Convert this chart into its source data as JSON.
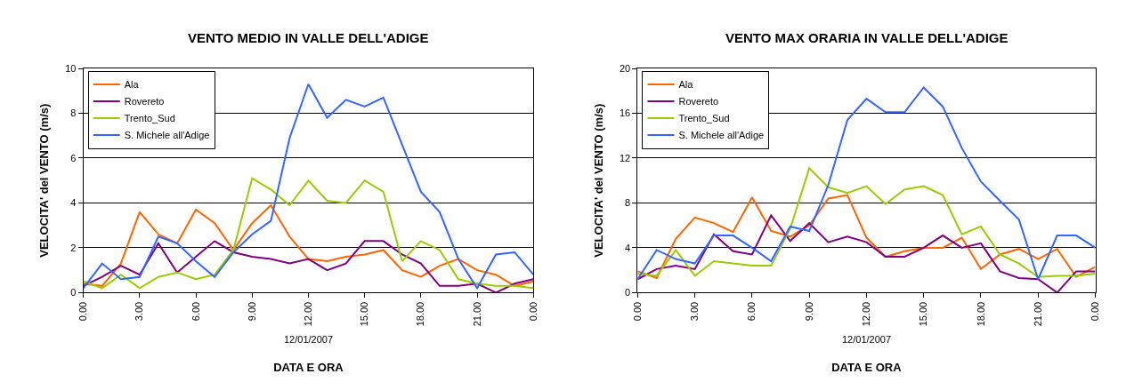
{
  "chart_data": [
    {
      "type": "line",
      "title": "VENTO MEDIO IN VALLE DELL'ADIGE",
      "xlabel": "DATA E ORA",
      "ylabel": "VELOCITA' del VENTO (m/s)",
      "annotations": [
        "12/01/2007"
      ],
      "categories": [
        "0.00",
        null,
        null,
        "3.00",
        null,
        null,
        "6.00",
        null,
        null,
        "9.00",
        null,
        null,
        "12.00",
        null,
        null,
        "15.00",
        null,
        null,
        "18.00",
        null,
        null,
        "21.00",
        null,
        null,
        "0.00"
      ],
      "ylim": [
        0,
        10
      ],
      "yticks": [
        0,
        2,
        4,
        6,
        8,
        10
      ],
      "grid": "y",
      "legend": "top left",
      "marker": "none",
      "line_style": "solid",
      "series": [
        {
          "name": "Ala",
          "color": "#ff6600",
          "values": [
            0.4,
            0.3,
            1.3,
            3.6,
            2.6,
            2.2,
            3.7,
            3.1,
            1.9,
            3.1,
            3.9,
            2.5,
            1.5,
            1.4,
            1.6,
            1.7,
            1.9,
            1.0,
            0.7,
            1.2,
            1.5,
            1.0,
            0.8,
            0.3,
            0.5
          ]
        },
        {
          "name": "Rovereto",
          "color": "#800080",
          "values": [
            0.3,
            0.7,
            1.2,
            0.8,
            2.2,
            0.9,
            1.6,
            2.3,
            1.8,
            1.6,
            1.5,
            1.3,
            1.5,
            1.0,
            1.3,
            2.3,
            2.3,
            1.7,
            1.3,
            0.3,
            0.3,
            0.4,
            0.0,
            0.4,
            0.6
          ]
        },
        {
          "name": "Trento_Sud",
          "color": "#99cc00",
          "values": [
            0.5,
            0.2,
            0.8,
            0.2,
            0.7,
            0.9,
            0.6,
            0.8,
            1.9,
            5.1,
            4.6,
            3.9,
            5.0,
            4.1,
            4.0,
            5.0,
            4.5,
            1.4,
            2.3,
            1.9,
            0.6,
            0.4,
            0.3,
            0.3,
            0.2
          ]
        },
        {
          "name": "S. Michele all'Adige",
          "color": "#3366ff",
          "values": [
            0.2,
            1.3,
            0.6,
            0.7,
            2.5,
            2.2,
            1.4,
            0.7,
            1.8,
            2.6,
            3.2,
            6.9,
            9.3,
            7.8,
            8.6,
            8.3,
            8.7,
            6.6,
            4.5,
            3.6,
            1.5,
            0.2,
            1.7,
            1.8,
            0.8
          ]
        }
      ]
    },
    {
      "type": "line",
      "title": "VENTO MAX ORARIA IN VALLE DELL'ADIGE",
      "xlabel": "DATA E ORA",
      "ylabel": "VELOCITA' del VENTO (m/s)",
      "annotations": [
        "12/01/2007"
      ],
      "categories": [
        "0.00",
        null,
        null,
        "3.00",
        null,
        null,
        "6.00",
        null,
        null,
        "9.00",
        null,
        null,
        "12.00",
        null,
        null,
        "15.00",
        null,
        null,
        "18.00",
        null,
        null,
        "21.00",
        null,
        null,
        "0.00"
      ],
      "ylim": [
        0,
        20
      ],
      "yticks": [
        0,
        4,
        8,
        12,
        16,
        20
      ],
      "grid": "y",
      "legend": "top left",
      "marker": "none",
      "line_style": "solid",
      "series": [
        {
          "name": "Ala",
          "color": "#ff6600",
          "values": [
            1.9,
            1.3,
            4.8,
            6.7,
            6.2,
            5.4,
            8.5,
            5.5,
            5.0,
            6.0,
            8.4,
            8.7,
            4.9,
            3.2,
            3.7,
            4.0,
            4.0,
            4.9,
            2.1,
            3.4,
            3.9,
            3.0,
            3.9,
            1.4,
            2.3
          ]
        },
        {
          "name": "Rovereto",
          "color": "#800080",
          "values": [
            1.2,
            2.1,
            2.4,
            2.1,
            5.2,
            3.7,
            3.4,
            6.9,
            4.6,
            6.2,
            4.5,
            5.0,
            4.5,
            3.2,
            3.2,
            4.0,
            5.1,
            4.0,
            4.4,
            1.9,
            1.3,
            1.2,
            0.0,
            1.9,
            1.9
          ]
        },
        {
          "name": "Trento_Sud",
          "color": "#99cc00",
          "values": [
            1.7,
            1.5,
            3.8,
            1.5,
            2.8,
            2.6,
            2.4,
            2.4,
            5.7,
            11.1,
            9.4,
            8.9,
            9.5,
            7.9,
            9.2,
            9.5,
            8.7,
            5.2,
            5.9,
            3.4,
            2.6,
            1.4,
            1.5,
            1.5,
            1.7
          ]
        },
        {
          "name": "S. Michele all'Adige",
          "color": "#3366ff",
          "values": [
            1.2,
            3.8,
            3.0,
            2.6,
            5.1,
            5.1,
            4.0,
            2.8,
            5.9,
            5.5,
            9.6,
            15.4,
            17.3,
            16.1,
            16.1,
            18.3,
            16.6,
            12.9,
            9.9,
            8.2,
            6.5,
            1.2,
            5.1,
            5.1,
            4.0
          ]
        }
      ]
    }
  ]
}
